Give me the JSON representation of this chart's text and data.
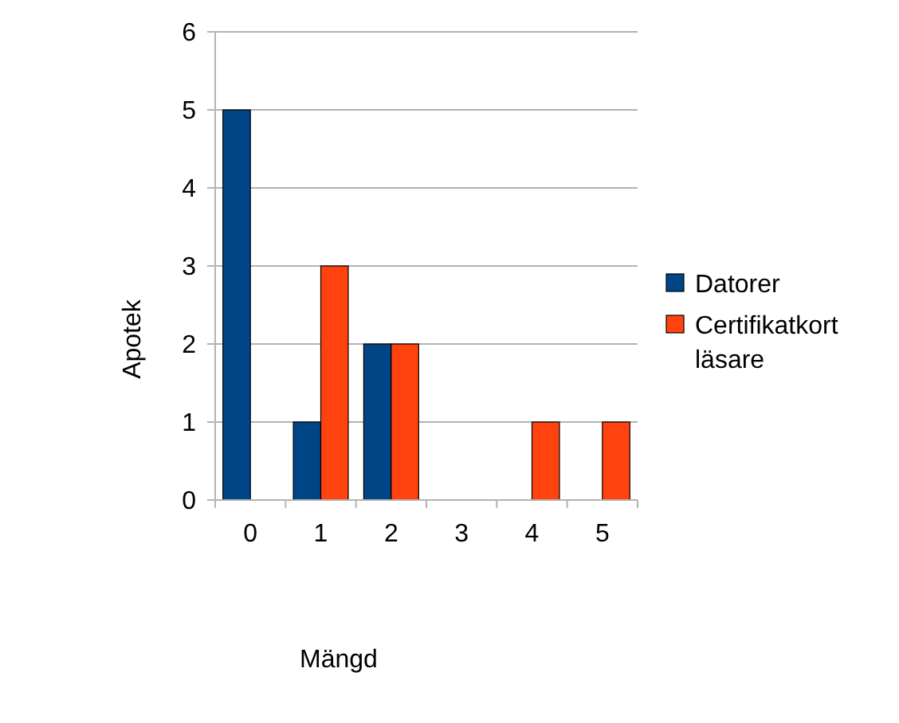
{
  "chart_data": {
    "type": "bar",
    "categories": [
      "0",
      "1",
      "2",
      "3",
      "4",
      "5"
    ],
    "xlabel": "Mängd",
    "ylabel": "Apotek",
    "series": [
      {
        "name": "Datorer",
        "color": "#004586",
        "values": [
          5,
          1,
          2,
          0,
          0,
          0
        ]
      },
      {
        "name": "Certifikatkort läsare",
        "color": "#ff420e",
        "values": [
          0,
          3,
          2,
          0,
          1,
          1
        ]
      }
    ],
    "ylim": [
      0,
      6
    ],
    "yticks": [
      0,
      1,
      2,
      3,
      4,
      5,
      6
    ],
    "grid": "y",
    "legend": "right"
  }
}
